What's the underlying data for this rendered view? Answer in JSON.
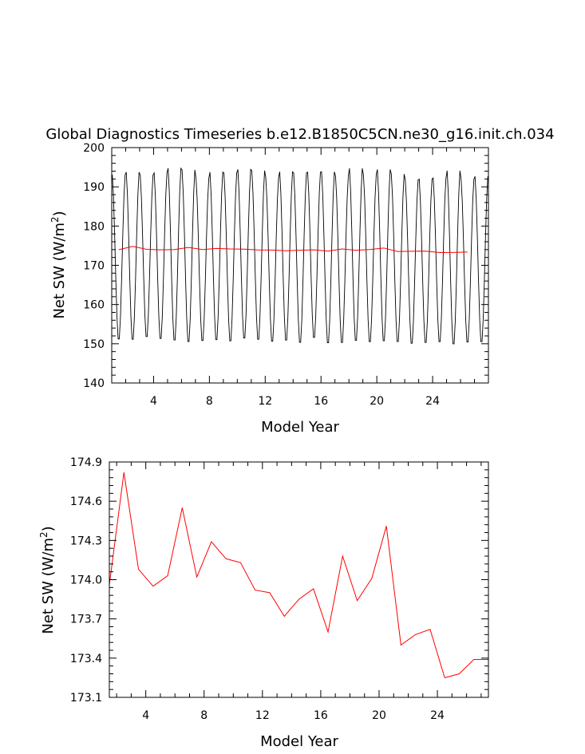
{
  "chart_data": [
    {
      "type": "line",
      "title": "Global Diagnostics Timeseries b.e12.B1850C5CN.ne30_g16.init.ch.034",
      "xlabel": "Model Year",
      "ylabel_main": "Net SW (W/m",
      "ylabel_sup": "2",
      "ylabel_close": ")",
      "xlim": [
        1,
        28
      ],
      "ylim": [
        140,
        200
      ],
      "xticks": [
        4,
        8,
        12,
        16,
        20,
        24
      ],
      "yticks": [
        140,
        150,
        160,
        170,
        180,
        190,
        200
      ],
      "colors": {
        "monthly": "#000000",
        "annual": "#ff0000"
      },
      "series": [
        {
          "kind": "monthly",
          "x_start": 1.0417,
          "x_step": 0.08333,
          "months": 324,
          "annual_max": [
            193.8,
            194.5,
            193.7,
            194.3,
            195.5,
            195.1,
            192.9,
            194.5,
            194.3,
            195.2,
            194.9,
            193.1,
            194.6,
            194.3,
            194.5,
            194.6,
            193.5,
            195.5,
            193.8,
            195.2,
            194.0,
            192.5,
            192.7,
            193.0,
            194.9,
            192.7,
            193.4
          ],
          "annual_min": [
            150.5,
            150.4,
            151.1,
            150.6,
            150.2,
            149.8,
            150.1,
            150.3,
            150.0,
            150.7,
            150.4,
            149.9,
            150.2,
            149.6,
            150.9,
            149.5,
            149.6,
            150.1,
            149.8,
            150.0,
            149.8,
            149.4,
            149.6,
            149.8,
            149.2,
            149.7,
            149.8
          ]
        },
        {
          "kind": "annual",
          "x": [
            1.5,
            2.5,
            3.5,
            4.5,
            5.5,
            6.5,
            7.5,
            8.5,
            9.5,
            10.5,
            11.5,
            12.5,
            13.5,
            14.5,
            15.5,
            16.5,
            17.5,
            18.5,
            19.5,
            20.5,
            21.5,
            22.5,
            23.5,
            24.5,
            25.5,
            26.5
          ],
          "y": [
            173.96,
            174.82,
            174.08,
            173.95,
            174.03,
            174.55,
            174.02,
            174.29,
            174.16,
            174.13,
            173.92,
            173.9,
            173.72,
            173.85,
            173.93,
            173.6,
            174.18,
            173.84,
            174.01,
            174.41,
            173.5,
            173.58,
            173.62,
            173.25,
            173.28,
            173.39
          ]
        }
      ]
    },
    {
      "type": "line",
      "title": "",
      "xlabel": "Model Year",
      "ylabel_main": "Net SW (W/m",
      "ylabel_sup": "2",
      "ylabel_close": ")",
      "xlim": [
        1.5,
        27.5
      ],
      "ylim": [
        173.1,
        174.9
      ],
      "xticks": [
        4,
        8,
        12,
        16,
        20,
        24
      ],
      "yticks": [
        173.1,
        173.4,
        173.7,
        174.0,
        174.3,
        174.6,
        174.9
      ],
      "ytick_labels": [
        "173.1",
        "173.4",
        "173.7",
        "174.0",
        "174.3",
        "174.6",
        "174.9"
      ],
      "colors": {
        "annual": "#ff0000"
      },
      "series": [
        {
          "kind": "annual",
          "x": [
            1.5,
            2.5,
            3.5,
            4.5,
            5.5,
            6.5,
            7.5,
            8.5,
            9.5,
            10.5,
            11.5,
            12.5,
            13.5,
            14.5,
            15.5,
            16.5,
            17.5,
            18.5,
            19.5,
            20.5,
            21.5,
            22.5,
            23.5,
            24.5,
            25.5,
            26.5,
            27.5
          ],
          "y": [
            173.96,
            174.82,
            174.08,
            173.95,
            174.03,
            174.55,
            174.02,
            174.29,
            174.16,
            174.13,
            173.92,
            173.9,
            173.72,
            173.85,
            173.93,
            173.6,
            174.18,
            173.84,
            174.01,
            174.41,
            173.5,
            173.58,
            173.62,
            173.25,
            173.28,
            173.39,
            173.39
          ]
        }
      ]
    }
  ]
}
